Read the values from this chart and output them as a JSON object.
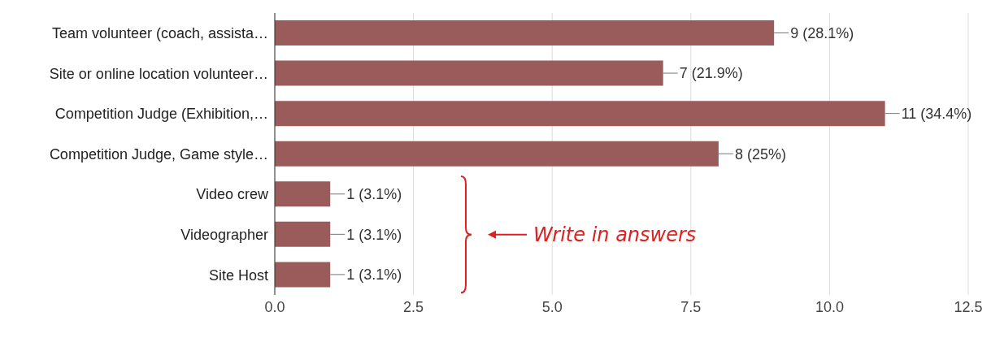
{
  "chart_data": {
    "type": "bar",
    "orientation": "horizontal",
    "categories": [
      "Team volunteer (coach, assista…",
      "Site or online location volunteer…",
      "Competition Judge (Exhibition,…",
      "Competition Judge, Game style…",
      "Video crew",
      "Videographer",
      "Site Host"
    ],
    "values": [
      9,
      7,
      11,
      8,
      1,
      1,
      1
    ],
    "color": "#9a5b5b",
    "value_labels": [
      "9 (28.1%)",
      "7 (21.9%)",
      "11 (34.4%)",
      "8 (25%)",
      "1 (3.1%)",
      "1 (3.1%)",
      "1 (3.1%)"
    ],
    "xlim": [
      0,
      12.5
    ],
    "xticks": [
      {
        "value": 0,
        "label": "0.0"
      },
      {
        "value": 2.5,
        "label": "2.5"
      },
      {
        "value": 5,
        "label": "5.0"
      },
      {
        "value": 7.5,
        "label": "7.5"
      },
      {
        "value": 10,
        "label": "10.0"
      },
      {
        "value": 12.5,
        "label": "12.5"
      }
    ],
    "grid": "x",
    "legend": false,
    "annotations": [
      "Write in answers"
    ]
  }
}
